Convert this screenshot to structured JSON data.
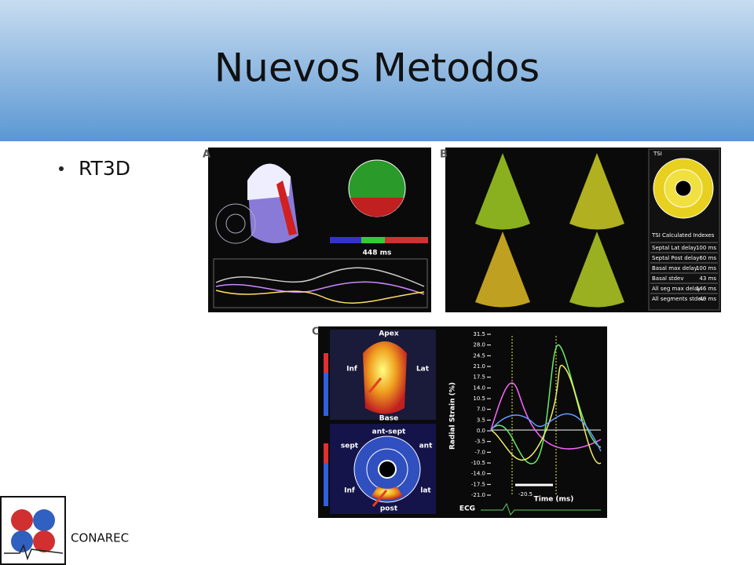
{
  "header": {
    "title": "Nuevos Metodos"
  },
  "bullets": [
    "RT3D"
  ],
  "figures": {
    "a": {
      "label": "A",
      "time": "448 ms"
    },
    "b": {
      "label": "B",
      "tsi": "TSI",
      "table_title": "TSI Calculated Indexes",
      "rows": [
        [
          "Septal Lat delay",
          "100 ms"
        ],
        [
          "Septal Post delay",
          "60 ms"
        ],
        [
          "Basal max delay",
          "100 ms"
        ],
        [
          "Basal stdev",
          "43 ms"
        ],
        [
          "All seg max delay",
          "146 ms"
        ],
        [
          "All segments stdev",
          "49 ms"
        ]
      ]
    },
    "c": {
      "label": "C",
      "apex": "Apex",
      "inf": "Inf",
      "lat": "Lat",
      "base": "Base",
      "ant_sept": "ant-sept",
      "sept": "sept",
      "ant": "ant",
      "inf_lower": "Inf",
      "lat_lower": "lat",
      "post": "post",
      "y_axis": "Radial Strain (%)",
      "x_axis": "Time (ms)",
      "ecg": "ECG",
      "marker": "-20.5",
      "y_ticks": [
        "31.5",
        "28.0",
        "24.5",
        "21.0",
        "17.5",
        "14.0",
        "10.5",
        "7.0",
        "3.5",
        "0.0",
        "-3.5",
        "-7.0",
        "-10.5",
        "-14.0",
        "-17.5",
        "-21.0"
      ]
    }
  },
  "footer": {
    "logo_text": "CONAREC"
  }
}
